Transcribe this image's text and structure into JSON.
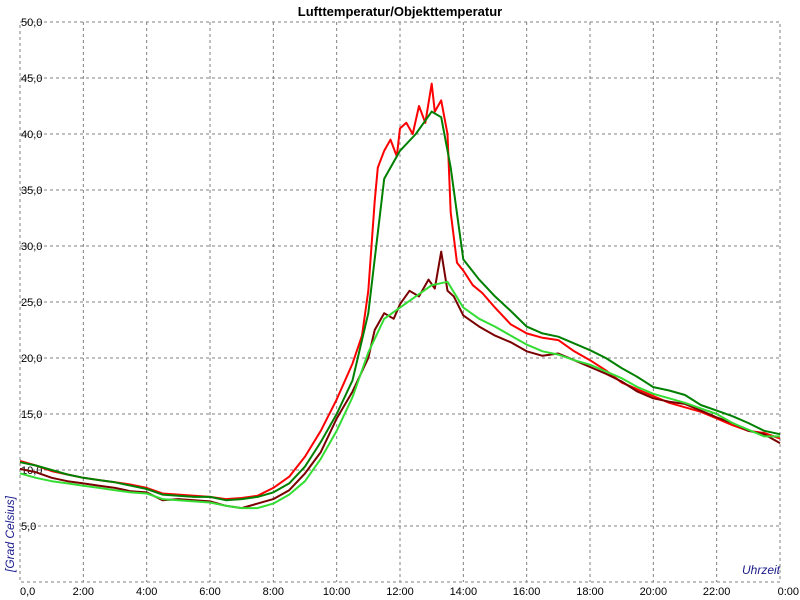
{
  "chart_data": {
    "type": "line",
    "title": "Lufttemperatur/Objekttemperatur",
    "xlabel": "Uhrzeit",
    "ylabel": "[Grad Celsius]",
    "xlim": [
      0,
      24
    ],
    "ylim": [
      0,
      50
    ],
    "x_ticks": [
      0,
      2,
      4,
      6,
      8,
      10,
      12,
      14,
      16,
      18,
      20,
      22,
      24
    ],
    "x_tick_labels": [
      "0,0",
      "2:00",
      "4:00",
      "6:00",
      "8:00",
      "10:00",
      "12:00",
      "14:00",
      "16:00",
      "18:00",
      "20:00",
      "22:00",
      "0:00"
    ],
    "y_ticks": [
      5,
      10,
      15,
      20,
      25,
      30,
      35,
      40,
      45,
      50
    ],
    "y_tick_labels": [
      "5,0",
      "10,0",
      "15,0",
      "20,0",
      "25,0",
      "30,0",
      "35,0",
      "40,0",
      "45,0",
      "50,0"
    ],
    "grid": true,
    "series": [
      {
        "color": "#ff0000",
        "x": [
          0,
          0.5,
          1,
          1.5,
          2,
          2.5,
          3,
          3.5,
          4,
          4.5,
          5,
          5.5,
          6,
          6.5,
          7,
          7.5,
          8,
          8.5,
          9,
          9.5,
          10,
          10.5,
          10.8,
          11,
          11.2,
          11.3,
          11.5,
          11.7,
          11.9,
          12,
          12.2,
          12.4,
          12.6,
          12.8,
          13,
          13.1,
          13.3,
          13.5,
          13.6,
          13.8,
          14,
          14.3,
          14.6,
          15,
          15.5,
          16,
          16.5,
          17,
          17.5,
          18,
          18.5,
          19,
          19.5,
          20,
          20.5,
          21,
          21.5,
          22,
          22.5,
          23,
          23.5,
          24
        ],
        "values": [
          10.8,
          10.4,
          9.9,
          9.6,
          9.3,
          9.1,
          8.9,
          8.7,
          8.4,
          7.9,
          7.8,
          7.7,
          7.6,
          7.4,
          7.5,
          7.7,
          8.4,
          9.4,
          11.2,
          13.5,
          16.3,
          19.5,
          22,
          26,
          34,
          37,
          38.5,
          39.5,
          38,
          40.5,
          41,
          40,
          42.5,
          41,
          44.5,
          42,
          43,
          40,
          33,
          28.5,
          27.8,
          26.5,
          25.8,
          24.5,
          23,
          22.2,
          21.8,
          21.6,
          20.6,
          19.8,
          18.9,
          17.8,
          17.2,
          16.6,
          16,
          15.6,
          15.2,
          14.6,
          14,
          13.5,
          13.3,
          12.8
        ]
      },
      {
        "color": "#7a0000",
        "x": [
          0,
          0.5,
          1,
          1.5,
          2,
          2.5,
          3,
          3.5,
          4,
          4.5,
          5,
          5.5,
          6,
          6.5,
          7,
          7.5,
          8,
          8.5,
          9,
          9.5,
          10,
          10.5,
          11,
          11.2,
          11.5,
          11.8,
          12,
          12.3,
          12.6,
          12.9,
          13.1,
          13.3,
          13.5,
          13.7,
          14,
          14.5,
          15,
          15.5,
          16,
          16.5,
          17,
          17.5,
          18,
          18.5,
          19,
          19.5,
          20,
          20.5,
          21,
          21.5,
          22,
          22.5,
          23,
          23.5,
          24
        ],
        "values": [
          10.1,
          9.8,
          9.3,
          9.0,
          8.8,
          8.6,
          8.4,
          8.1,
          8.0,
          7.3,
          7.4,
          7.3,
          7.2,
          6.8,
          6.6,
          7.0,
          7.4,
          8.2,
          9.7,
          11.6,
          14.6,
          17,
          20,
          22.5,
          24,
          23.5,
          24.8,
          26,
          25.5,
          27,
          26.2,
          29.5,
          26,
          25.5,
          23.8,
          22.8,
          22,
          21.4,
          20.6,
          20.2,
          20.4,
          19.8,
          19.2,
          18.6,
          17.9,
          17.0,
          16.4,
          16.1,
          15.9,
          15.3,
          14.7,
          14.2,
          13.5,
          13.2,
          12.4
        ]
      },
      {
        "color": "#008000",
        "x": [
          0,
          0.5,
          1,
          1.5,
          2,
          2.5,
          3,
          3.5,
          4,
          4.5,
          5,
          5.5,
          6,
          6.5,
          7,
          7.5,
          8,
          8.5,
          9,
          9.5,
          10,
          10.5,
          11,
          11.5,
          12,
          12.5,
          13,
          13.3,
          13.6,
          14,
          14.5,
          15,
          15.5,
          16,
          16.5,
          17,
          17.5,
          18,
          18.5,
          19,
          19.5,
          20,
          20.5,
          21,
          21.5,
          22,
          22.5,
          23,
          23.5,
          24
        ],
        "values": [
          10.7,
          10.4,
          10.0,
          9.6,
          9.3,
          9.1,
          8.9,
          8.6,
          8.3,
          7.8,
          7.7,
          7.6,
          7.6,
          7.3,
          7.4,
          7.6,
          8.0,
          8.8,
          10.3,
          12.5,
          15,
          18,
          24,
          36,
          38.5,
          40,
          42,
          41.5,
          37,
          28.8,
          27,
          25.5,
          24.2,
          22.8,
          22.2,
          21.9,
          21.3,
          20.7,
          20.0,
          19.1,
          18.3,
          17.4,
          17.1,
          16.7,
          15.8,
          15.3,
          14.8,
          14.2,
          13.5,
          13.2
        ]
      },
      {
        "color": "#33dd33",
        "x": [
          0,
          0.5,
          1,
          1.5,
          2,
          2.5,
          3,
          3.5,
          4,
          4.5,
          5,
          5.5,
          6,
          6.5,
          7,
          7.5,
          8,
          8.5,
          9,
          9.5,
          10,
          10.5,
          11,
          11.5,
          12,
          12.5,
          13,
          13.5,
          14,
          14.5,
          15,
          15.5,
          16,
          16.5,
          17,
          17.5,
          18,
          18.5,
          19,
          19.5,
          20,
          20.5,
          21,
          21.5,
          22,
          22.5,
          23,
          23.5,
          24
        ],
        "values": [
          9.7,
          9.3,
          9.0,
          8.8,
          8.6,
          8.4,
          8.2,
          8.0,
          7.9,
          7.4,
          7.3,
          7.2,
          7.1,
          6.8,
          6.6,
          6.6,
          7.0,
          7.8,
          9.0,
          11.0,
          13.5,
          16.5,
          20.5,
          23.5,
          24.5,
          25.5,
          26.5,
          26.8,
          24.5,
          23.5,
          22.8,
          22.0,
          21.2,
          20.6,
          20.3,
          19.8,
          19.4,
          18.8,
          18.2,
          17.4,
          16.8,
          16.4,
          16.0,
          15.5,
          15.0,
          14.2,
          13.6,
          13.0,
          13.0
        ]
      }
    ]
  }
}
